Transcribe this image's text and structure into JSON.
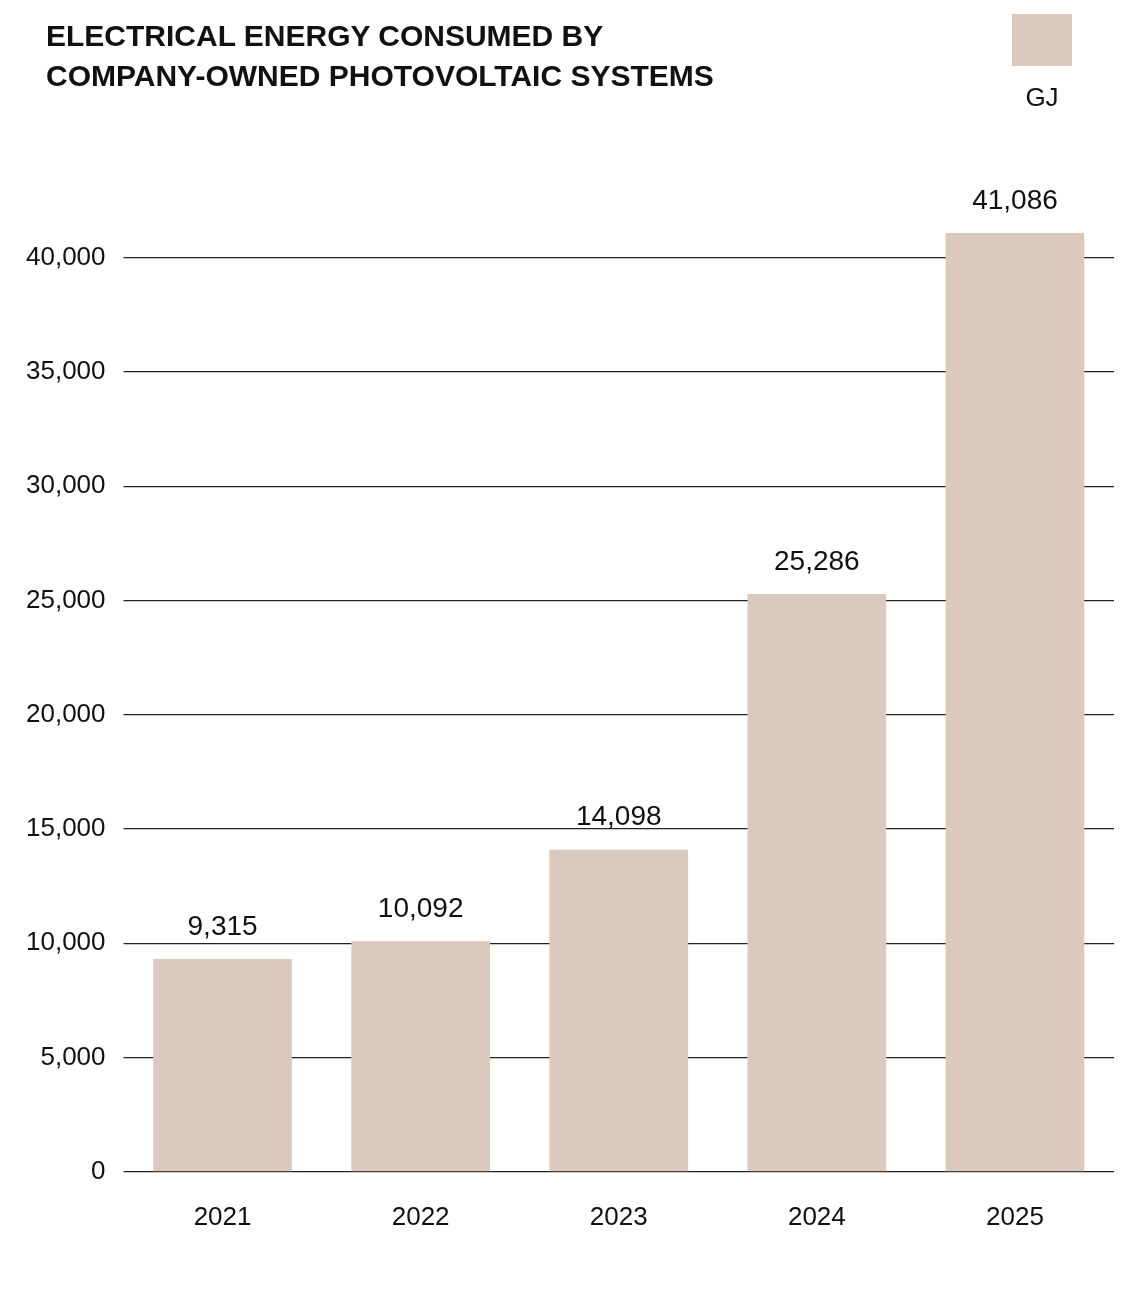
{
  "chart_data": {
    "type": "bar",
    "title": "ELECTRICAL ENERGY CONSUMED BY COMPANY-OWNED PHOTOVOLTAIC SYSTEMS",
    "categories": [
      "2021",
      "2022",
      "2023",
      "2024",
      "2025"
    ],
    "series": [
      {
        "name": "GJ",
        "color": "#dbc9bd",
        "values": [
          9315,
          10092,
          14098,
          25286,
          41086
        ],
        "value_labels": [
          "9,315",
          "10,092",
          "14,098",
          "25,286",
          "41,086"
        ]
      }
    ],
    "yticks": [
      0,
      {
        "value": 5000,
        "label": "5,000"
      },
      {
        "value": 10000,
        "label": "10,000"
      },
      {
        "value": 15000,
        "label": "15,000"
      },
      {
        "value": 20000,
        "label": "20,000"
      },
      {
        "value": 25000,
        "label": "25,000"
      },
      {
        "value": 30000,
        "label": "30,000"
      },
      {
        "value": 35000,
        "label": "35,000"
      },
      {
        "value": 40000,
        "label": "40,000"
      }
    ],
    "ylim": [
      0,
      41086
    ],
    "grid": "y",
    "legend": "top right"
  }
}
